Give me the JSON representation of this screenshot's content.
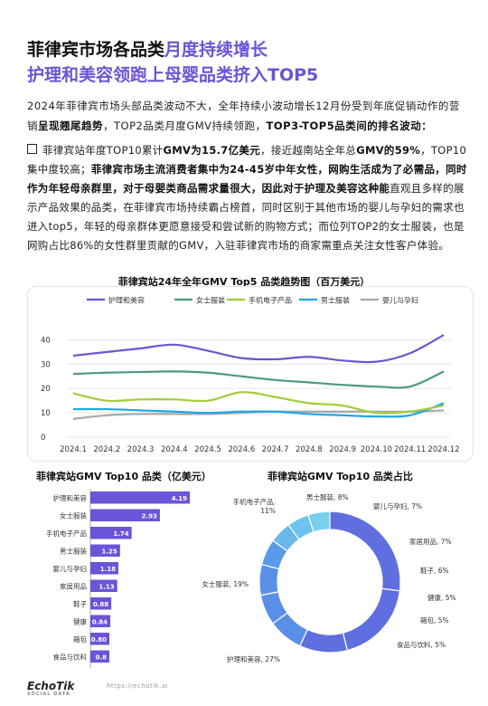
{
  "header": {
    "title_line1_main": "菲律宾市场各品类",
    "title_line1_accent": "月度持续增长",
    "title_line2": "护理和美容领跑上母婴品类挤入TOP5"
  },
  "intro": {
    "text1": "2024年菲律宾市场头部品类波动不大，全年持续小波动增长12月份受到年底促销动作的营销",
    "bold1": "呈现翘尾趋势",
    "text2": "，TOP2品类月度GMV持续领跑，",
    "bold2": "TOP3-TOP5品类间的排名波动："
  },
  "bullet": {
    "p1": "菲律宾站年度TOP10累计",
    "b1": "GMV为15.7亿美元",
    "p2": "，接近越南站全年总",
    "b2": "GMV的59%",
    "p3": "，TOP10集中度较高；",
    "b3": "菲律宾市场主流消费者集中为24-45岁中年女性，网购生活成为了必需品，同时作为年轻母亲群里，对于母婴类商品需求量很大，因此对于护理及美容这种能",
    "p4": "直观且多样的展示产品效果的品类，在菲律宾市场持续霸占榜首，同时区别于其他市场的婴儿与孕妇的需求也进入top5，年轻的母亲群体更愿意接受和尝试新的购物方式；而位列TOP2的女士服装，也是网购占比86%的女性群里贡献的GMV，入驻菲律宾市场的商家需重点关注女性客户体验。"
  },
  "line_chart": {
    "chart_data": {
      "type": "line",
      "title": "菲律宾站24年全年GMV Top5 品类趋势图（百万美元）",
      "x": [
        "2024.1",
        "2024.2",
        "2024.3",
        "2024.4",
        "2024.5",
        "2024.6",
        "2024.7",
        "2024.8",
        "2024.9",
        "2024.10",
        "2024.11",
        "2024.12"
      ],
      "ylim": [
        0,
        45
      ],
      "yticks": [
        0,
        10,
        20,
        30,
        40
      ],
      "legend": "top",
      "series": [
        {
          "name": "护理和美容",
          "color": "#6a55d6",
          "values": [
            33.5,
            35,
            36.5,
            38,
            35.5,
            32.5,
            32,
            33,
            31.5,
            31,
            34.5,
            42
          ]
        },
        {
          "name": "女士服装",
          "color": "#4e9a7f",
          "values": [
            26,
            26.5,
            26.8,
            27,
            26.5,
            25,
            23.5,
            22.5,
            21.5,
            20.8,
            20.8,
            27
          ]
        },
        {
          "name": "手机电子产品",
          "color": "#a4cc3a",
          "values": [
            18,
            15,
            15.5,
            15.5,
            15,
            18.5,
            16.5,
            14,
            13,
            10,
            10.5,
            13
          ]
        },
        {
          "name": "男士服装",
          "color": "#1ea7e8",
          "values": [
            11.5,
            11.5,
            11,
            10.5,
            10,
            10.5,
            10.5,
            9.5,
            9,
            8.5,
            9,
            14
          ]
        },
        {
          "name": "婴儿与孕妇",
          "color": "#a8a8a8",
          "values": [
            7.5,
            9,
            9.5,
            9.5,
            9.5,
            10,
            10.5,
            10.5,
            10.5,
            10.5,
            10.5,
            11
          ]
        }
      ]
    }
  },
  "bar_chart": {
    "chart_data": {
      "type": "bar",
      "title": "菲律宾站GMV Top10 品类（亿美元）",
      "orientation": "horizontal",
      "color": "#6b54d8",
      "categories": [
        "护理和美容",
        "女士服装",
        "手机电子产品",
        "男士服装",
        "婴儿与孕妇",
        "家居用品",
        "鞋子",
        "健康",
        "箱包",
        "食品与饮料"
      ],
      "values": [
        4.19,
        2.93,
        1.74,
        1.25,
        1.18,
        1.13,
        0.88,
        0.84,
        0.8,
        0.8
      ],
      "labels": [
        "4.19",
        "2.93",
        "1.74",
        "1.25",
        "1.18",
        "1.13",
        "0.88",
        "0.84",
        "0.80",
        "0.8"
      ]
    }
  },
  "donut_chart": {
    "chart_data": {
      "type": "pie",
      "title": "菲律宾站GMV Top10 品类占比",
      "categories": [
        "护理和美容",
        "女士服装",
        "手机电子产品",
        "男士服装",
        "婴儿与孕妇",
        "家居用品",
        "鞋子",
        "健康",
        "箱包",
        "食品与饮料"
      ],
      "values": [
        27,
        19,
        11,
        8,
        7,
        7,
        6,
        5,
        5,
        5
      ],
      "labels": [
        "护理和美容, 27%",
        "女士服装, 19%",
        "手机电子产品, 11%",
        "男士服装, 8%",
        "婴儿与孕妇, 7%",
        "家居用品, 7%",
        "鞋子, 6%",
        "健康, 5%",
        "箱包, 5%",
        "食品与饮料, 5%"
      ],
      "colors": [
        "#5f6fe0",
        "#5f6fe0",
        "#5f6fe0",
        "#5a8fe8",
        "#5a8fe8",
        "#5a8fe8",
        "#5a9ae9",
        "#6ab7ea",
        "#6cc4ee",
        "#78cfef"
      ]
    }
  },
  "footer": {
    "logo": "EchoTik",
    "logo_sub": "SOCIAL DATA",
    "url": "https://echotik.ai"
  }
}
